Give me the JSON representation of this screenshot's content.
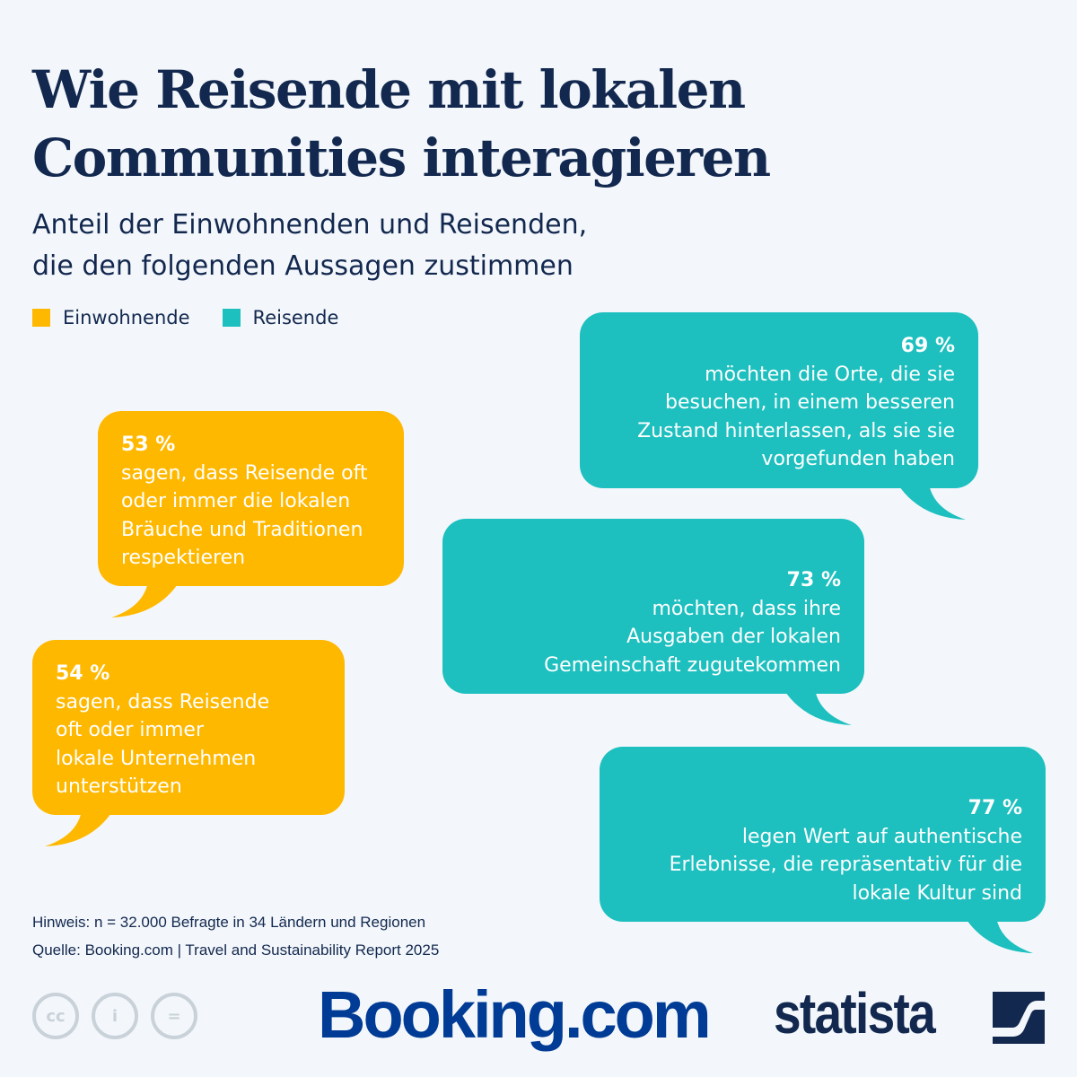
{
  "title": [
    "Wie Reisende mit lokalen",
    "Communities interagieren"
  ],
  "subtitle": [
    "Anteil der Einwohnenden und Reisenden,",
    "die den folgenden Aussagen zustimmen"
  ],
  "legend": [
    {
      "label": "Einwohnende",
      "color": "#ffb800"
    },
    {
      "label": "Reisende",
      "color": "#1dbfbf"
    }
  ],
  "bubbles": [
    {
      "group": "Einwohnende",
      "pct": "53 %",
      "lines": [
        "sagen, dass Reisende oft",
        "oder immer die lokalen",
        "Bräuche und Traditionen",
        "respektieren"
      ]
    },
    {
      "group": "Einwohnende",
      "pct": "54 %",
      "lines": [
        "sagen, dass Reisende",
        "oft oder immer",
        "lokale Unternehmen",
        "unterstützen"
      ]
    },
    {
      "group": "Reisende",
      "pct": "69 %",
      "lines": [
        "möchten die Orte, die sie",
        "besuchen, in einem besseren",
        "Zustand hinterlassen, als sie sie",
        "vorgefunden haben"
      ]
    },
    {
      "group": "Reisende",
      "pct": "73 %",
      "lines": [
        "möchten, dass ihre",
        "Ausgaben der lokalen",
        "Gemeinschaft zugutekommen"
      ]
    },
    {
      "group": "Reisende",
      "pct": "77 %",
      "lines": [
        "legen Wert auf authentische",
        "Erlebnisse, die repräsentativ für die",
        "lokale Kultur sind"
      ]
    }
  ],
  "notes": {
    "hinweis": "Hinweis: n = 32.000 Befragte in 34 Ländern und Regionen",
    "quelle": "Quelle: Booking.com | Travel and Sustainability Report 2025"
  },
  "logos": {
    "booking": "Booking.com",
    "statista": "statista",
    "license_icons": [
      "cc-icon",
      "attribution-icon",
      "no-derivatives-icon"
    ]
  },
  "colors": {
    "navy": "#13284f",
    "yellow": "#ffb800",
    "teal": "#1dbfbf",
    "background": "#f3f7fb",
    "booking_blue": "#003b95"
  }
}
